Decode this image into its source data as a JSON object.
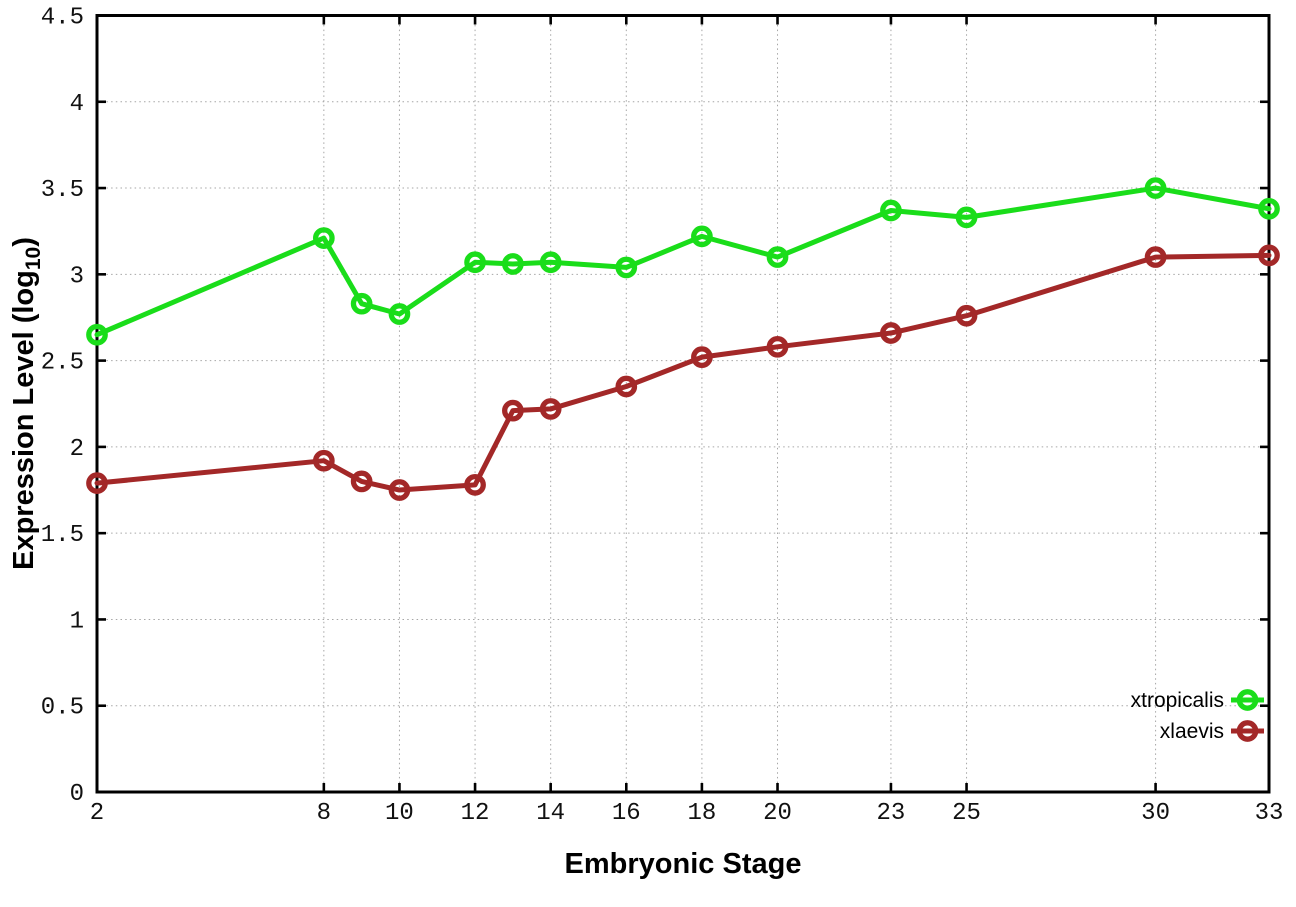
{
  "chart_data": {
    "type": "line",
    "title": "",
    "xlabel": "Embryonic Stage",
    "ylabel": "Expression Level (log10)",
    "ylabel_parts": {
      "main": "Expression Level (log",
      "sub": "10",
      "close": ")"
    },
    "xlim": [
      2,
      33
    ],
    "ylim": [
      0,
      4.5
    ],
    "grid": true,
    "grid_style": "dotted",
    "legend_position": "bottom-right",
    "marker": "open-circle",
    "xticks": [
      2,
      8,
      10,
      12,
      14,
      16,
      18,
      20,
      23,
      25,
      30,
      33
    ],
    "xtick_labels": [
      "2",
      "8",
      "10",
      "12",
      "14",
      "16",
      "18",
      "20",
      "23",
      "25",
      "30",
      "33"
    ],
    "yticks": [
      0,
      0.5,
      1,
      1.5,
      2,
      2.5,
      3,
      3.5,
      4,
      4.5
    ],
    "ytick_labels": [
      "0",
      "0.5",
      "1",
      "1.5",
      "2",
      "2.5",
      "3",
      "3.5",
      "4",
      "4.5"
    ],
    "x": [
      2,
      8,
      9,
      10,
      12,
      13,
      14,
      16,
      18,
      20,
      23,
      25,
      30,
      33
    ],
    "series": [
      {
        "name": "xtropicalis",
        "color": "#1add1a",
        "values": [
          2.65,
          3.21,
          2.83,
          2.77,
          3.07,
          3.06,
          3.07,
          3.04,
          3.22,
          3.1,
          3.37,
          3.33,
          3.5,
          3.38
        ]
      },
      {
        "name": "xlaevis",
        "color": "#a32828",
        "values": [
          1.79,
          1.92,
          1.8,
          1.75,
          1.78,
          2.21,
          2.22,
          2.35,
          2.52,
          2.58,
          2.66,
          2.76,
          3.1,
          3.11
        ]
      }
    ]
  }
}
